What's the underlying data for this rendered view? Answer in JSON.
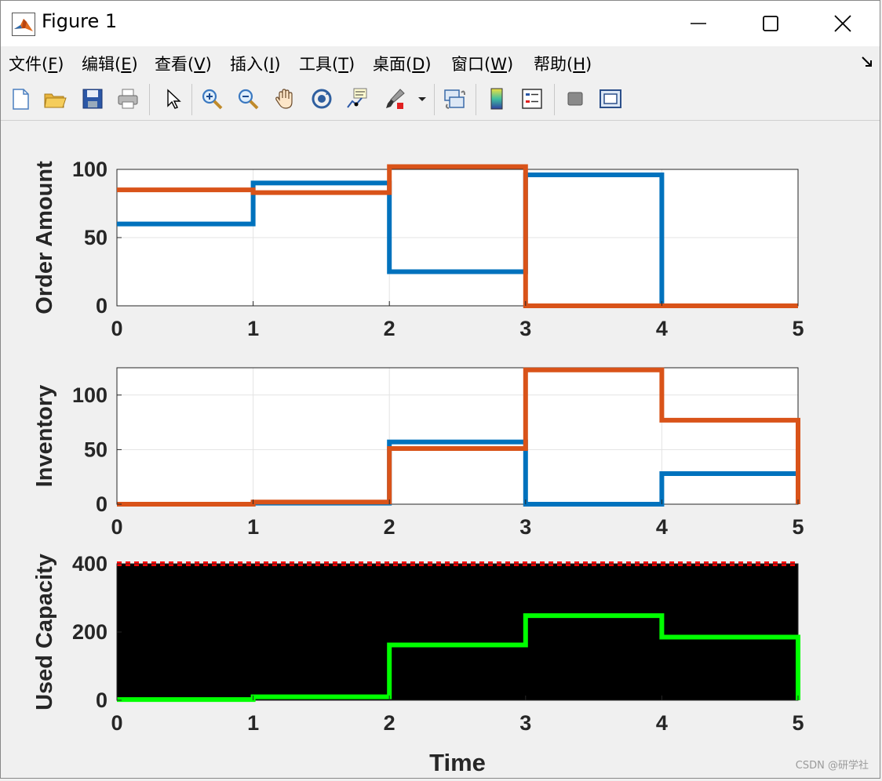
{
  "window": {
    "title": "Figure 1"
  },
  "menu": {
    "items": [
      {
        "prefix": "文件(",
        "key": "F",
        "suffix": ")"
      },
      {
        "prefix": "编辑(",
        "key": "E",
        "suffix": ")"
      },
      {
        "prefix": "查看(",
        "key": "V",
        "suffix": ")"
      },
      {
        "prefix": "插入(",
        "key": "I",
        "suffix": ")"
      },
      {
        "prefix": "工具(",
        "key": "T",
        "suffix": ")"
      },
      {
        "prefix": "桌面(",
        "key": "D",
        "suffix": ")"
      },
      {
        "prefix": "窗口(",
        "key": "W",
        "suffix": ")"
      },
      {
        "prefix": "帮助(",
        "key": "H",
        "suffix": ")"
      }
    ]
  },
  "toolbar": {
    "icons": [
      "new-figure-icon",
      "open-folder-icon",
      "save-icon",
      "print-icon",
      "pointer-icon",
      "zoom-in-icon",
      "zoom-out-icon",
      "pan-hand-icon",
      "rotate-3d-icon",
      "data-cursor-icon",
      "brush-icon",
      "dropdown-arrow-icon",
      "link-plot-icon",
      "colorbar-icon",
      "legend-icon",
      "hide-plot-tools-icon",
      "show-plot-tools-icon"
    ]
  },
  "colors": {
    "series_blue": "#0072bd",
    "series_orange": "#d95319",
    "capacity_green": "#00ff00",
    "capacity_limit_red": "#ff0000",
    "capacity_background": "#000000"
  },
  "chart_data": [
    {
      "type": "line",
      "step": true,
      "ylabel": "Order Amount",
      "xlabel": "",
      "xlim": [
        0,
        5
      ],
      "ylim": [
        0,
        100
      ],
      "xticks": [
        "0",
        "1",
        "2",
        "3",
        "4",
        "5"
      ],
      "yticks": [
        "0",
        "50",
        "100"
      ],
      "grid": true,
      "series": [
        {
          "color": "#0072bd",
          "x": [
            0,
            1,
            2,
            3,
            4,
            5
          ],
          "y": [
            60,
            90,
            25,
            96,
            0,
            0
          ]
        },
        {
          "color": "#d95319",
          "x": [
            0,
            1,
            2,
            3,
            4,
            5
          ],
          "y": [
            85,
            83,
            102,
            0,
            0,
            0
          ]
        }
      ]
    },
    {
      "type": "line",
      "step": true,
      "ylabel": "Inventory",
      "xlabel": "",
      "xlim": [
        0,
        5
      ],
      "ylim": [
        0,
        125
      ],
      "xticks": [
        "0",
        "1",
        "2",
        "3",
        "4",
        "5"
      ],
      "yticks": [
        "0",
        "50",
        "100"
      ],
      "grid": true,
      "series": [
        {
          "color": "#0072bd",
          "x": [
            0,
            1,
            2,
            3,
            4,
            5
          ],
          "y": [
            0,
            1,
            57,
            0,
            28,
            0
          ]
        },
        {
          "color": "#d95319",
          "x": [
            0,
            1,
            2,
            3,
            4,
            5
          ],
          "y": [
            0,
            2,
            51,
            123,
            77,
            0
          ]
        }
      ]
    },
    {
      "type": "line",
      "step": true,
      "ylabel": "Used Capacity",
      "xlabel": "Time",
      "xlim": [
        0,
        5
      ],
      "ylim": [
        0,
        400
      ],
      "xticks": [
        "0",
        "1",
        "2",
        "3",
        "4",
        "5"
      ],
      "yticks": [
        "0",
        "200",
        "400"
      ],
      "grid": false,
      "background": "#000000",
      "limit_line": {
        "y": 400,
        "color": "#ff0000",
        "style": "dotted"
      },
      "series": [
        {
          "color": "#00ff00",
          "x": [
            0,
            1,
            2,
            3,
            4,
            5
          ],
          "y": [
            2,
            10,
            162,
            248,
            185,
            0
          ]
        }
      ]
    }
  ],
  "watermark": "CSDN @研学社"
}
